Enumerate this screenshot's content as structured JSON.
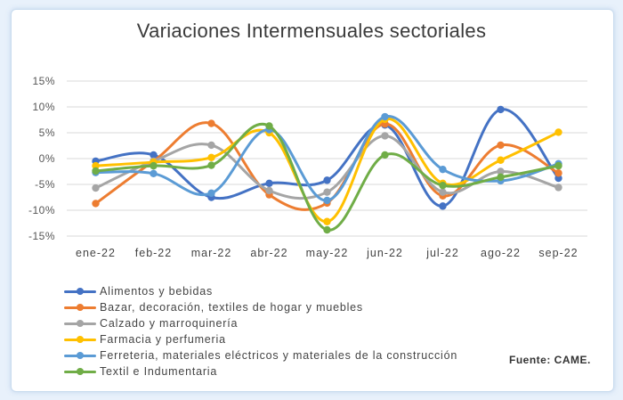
{
  "chart_data": {
    "type": "line",
    "title": "Variaciones Intermensuales sectoriales",
    "categories": [
      "ene-22",
      "feb-22",
      "mar-22",
      "abr-22",
      "may-22",
      "jun-22",
      "jul-22",
      "ago-22",
      "sep-22"
    ],
    "ylim": [
      -15,
      15
    ],
    "yticks": [
      -15,
      -10,
      -5,
      0,
      5,
      10,
      15
    ],
    "ytick_labels": [
      "-15%",
      "-10%",
      "-5%",
      "0%",
      "5%",
      "10%",
      "15%"
    ],
    "grid": true,
    "smooth": true,
    "legend_position": "bottom-left",
    "series": [
      {
        "name": "Alimentos y bebidas",
        "color": "#4472c4",
        "values": [
          -0.5,
          0.7,
          -7.5,
          -4.8,
          -4.2,
          6.5,
          -9.2,
          9.5,
          -3.8
        ]
      },
      {
        "name": "Bazar, decoración, textiles de hogar y muebles",
        "color": "#ed7d31",
        "values": [
          -8.7,
          -0.5,
          6.8,
          -7.0,
          -8.6,
          6.7,
          -7.2,
          2.6,
          -2.8
        ]
      },
      {
        "name": "Calzado y marroquinería",
        "color": "#a5a5a5",
        "values": [
          -5.7,
          -0.5,
          2.6,
          -6.2,
          -6.5,
          4.4,
          -6.5,
          -2.5,
          -5.6
        ]
      },
      {
        "name": "Farmacia y perfumeria",
        "color": "#ffc000",
        "values": [
          -1.4,
          -0.7,
          0.2,
          5.0,
          -12.2,
          7.6,
          -4.8,
          -0.3,
          5.1
        ]
      },
      {
        "name": "Ferreteria, materiales eléctricos y materiales de la construcción",
        "color": "#5b9bd5",
        "values": [
          -2.7,
          -2.9,
          -6.7,
          5.6,
          -8.1,
          8.1,
          -2.1,
          -4.3,
          -1.0
        ]
      },
      {
        "name": "Textil e Indumentaria",
        "color": "#70ad47",
        "values": [
          -2.4,
          -1.4,
          -1.3,
          6.3,
          -13.8,
          0.7,
          -5.2,
          -3.6,
          -1.4
        ]
      }
    ]
  },
  "source_note": "Fuente: CAME."
}
